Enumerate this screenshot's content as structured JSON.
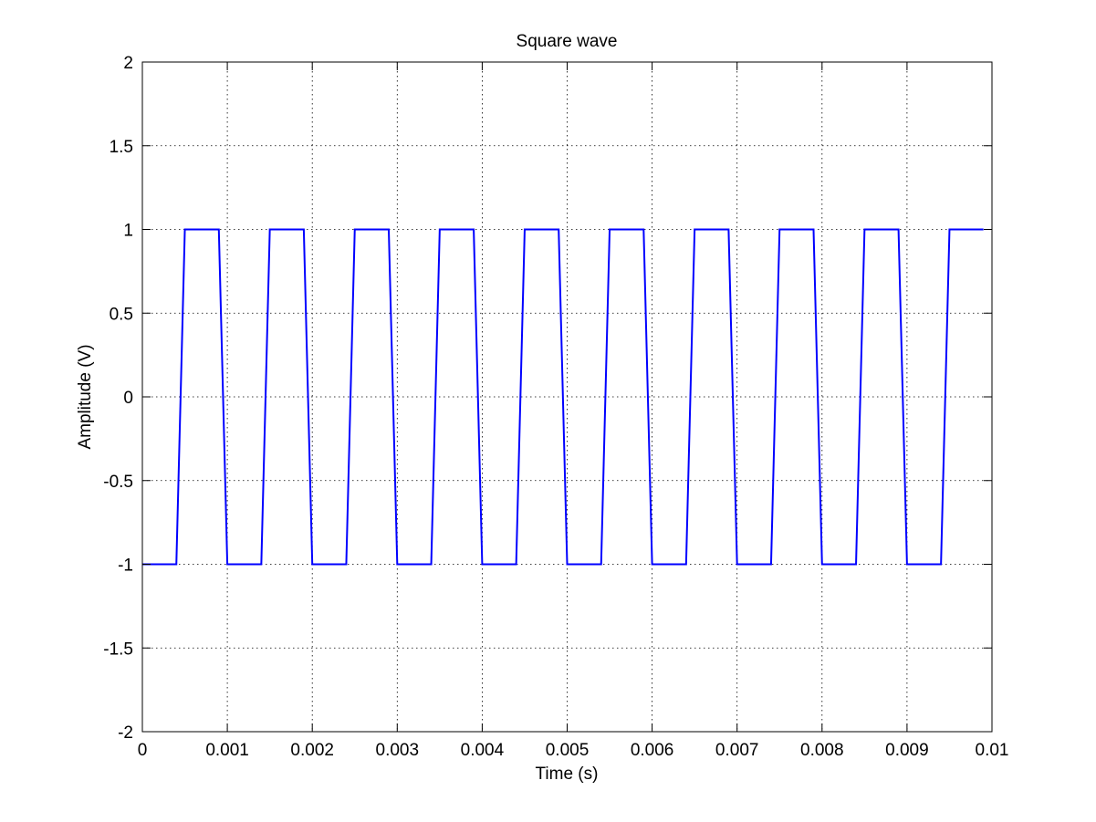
{
  "chart_data": {
    "type": "line",
    "title": "Square wave",
    "xlabel": "Time (s)",
    "ylabel": "Amplitude (V)",
    "xlim": [
      0,
      0.01
    ],
    "ylim": [
      -2,
      2
    ],
    "grid": true,
    "legend": "none",
    "x_ticks": [
      "0",
      "0.001",
      "0.002",
      "0.003",
      "0.004",
      "0.005",
      "0.006",
      "0.007",
      "0.008",
      "0.009",
      "0.01"
    ],
    "y_ticks": [
      "2",
      "1.5",
      "1",
      "0.5",
      "0",
      "-0.5",
      "-1",
      "-1.5",
      "-2"
    ],
    "series": [
      {
        "color": "#0000ff",
        "x": [
          0,
          0.0004,
          0.0005,
          0.0009,
          0.001,
          0.0014,
          0.0015,
          0.0019,
          0.002,
          0.0024,
          0.0025,
          0.0029,
          0.003,
          0.0034,
          0.0035,
          0.0039,
          0.004,
          0.0044,
          0.0045,
          0.0049,
          0.005,
          0.0054,
          0.0055,
          0.0059,
          0.006,
          0.0064,
          0.0065,
          0.0069,
          0.007,
          0.0074,
          0.0075,
          0.0079,
          0.008,
          0.0084,
          0.0085,
          0.0089,
          0.009,
          0.0094,
          0.0095,
          0.0099
        ],
        "y": [
          -1,
          -1,
          1,
          1,
          -1,
          -1,
          1,
          1,
          -1,
          -1,
          1,
          1,
          -1,
          -1,
          1,
          1,
          -1,
          -1,
          1,
          1,
          -1,
          -1,
          1,
          1,
          -1,
          -1,
          1,
          1,
          -1,
          -1,
          1,
          1,
          -1,
          -1,
          1,
          1,
          -1,
          -1,
          1,
          1
        ]
      }
    ]
  }
}
